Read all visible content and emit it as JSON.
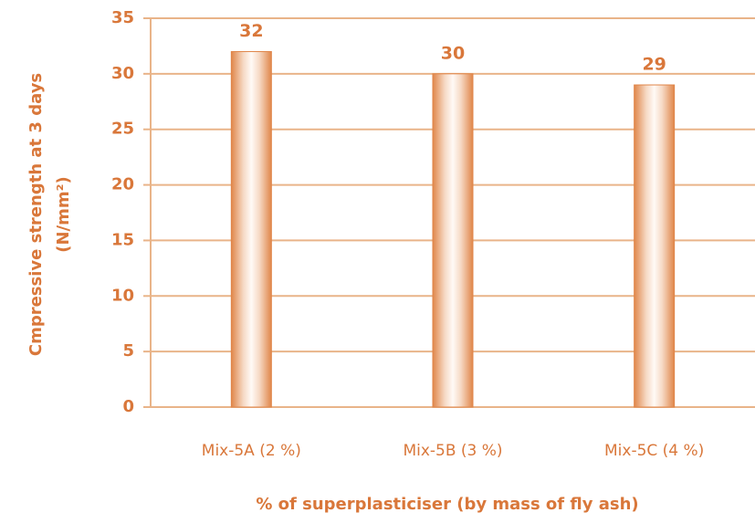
{
  "chart_data": {
    "type": "bar",
    "ylabel": [
      "Cmpressive strength at 3 days",
      "(N/mm²)"
    ],
    "xlabel": "% of superplasticiser (by mass of fly ash)",
    "categories": [
      "Mix-5A (2 %)",
      "Mix-5B (3 %)",
      "Mix-5C (4 %)"
    ],
    "values": [
      32,
      30,
      29
    ],
    "color": "#e0864a",
    "ylim": [
      0,
      35
    ],
    "yticks": [
      0,
      5,
      10,
      15,
      20,
      25,
      30,
      35
    ],
    "grid": true
  }
}
